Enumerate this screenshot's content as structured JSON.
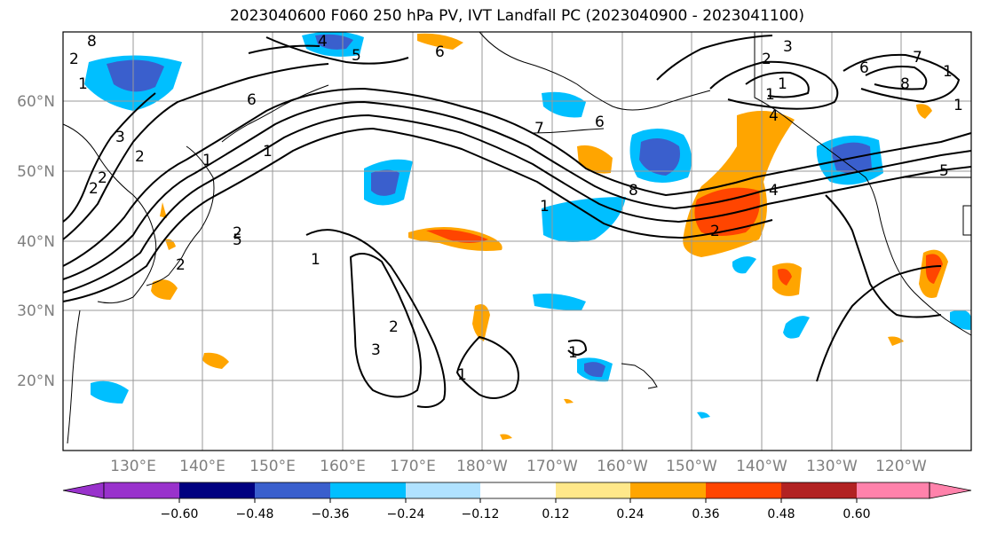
{
  "title": "2023040600 F060 250 hPa PV, IVT Landfall PC (2023040900 - 2023041100)",
  "lon_labels": [
    "130°E",
    "140°E",
    "150°E",
    "160°E",
    "170°E",
    "180°W",
    "170°W",
    "160°W",
    "150°W",
    "140°W",
    "130°W",
    "120°W"
  ],
  "lat_labels": [
    "60°N",
    "50°N",
    "40°N",
    "30°N",
    "20°N"
  ],
  "colorbar": {
    "ticks": [
      "−0.60",
      "−0.48",
      "−0.36",
      "−0.24",
      "−0.12",
      "0.12",
      "0.24",
      "0.36",
      "0.48",
      "0.60"
    ],
    "colors": [
      "#9932cc",
      "#000080",
      "#3a5fcd",
      "#00bfff",
      "#b0e2ff",
      "#ffffff",
      "#ffe88a",
      "#ffa500",
      "#ff4500",
      "#b22222",
      "#ff82ab"
    ]
  },
  "contour_labels": [
    "4",
    "5",
    "6",
    "2",
    "1",
    "3",
    "1",
    "2",
    "6",
    "1",
    "2",
    "1",
    "6",
    "8",
    "7",
    "2",
    "2",
    "1",
    "1",
    "6",
    "7",
    "8",
    "4",
    "1",
    "2",
    "3",
    "1",
    "1",
    "5",
    "2",
    "8",
    "1",
    "2",
    "3",
    "1",
    "4",
    "2",
    "5"
  ]
}
